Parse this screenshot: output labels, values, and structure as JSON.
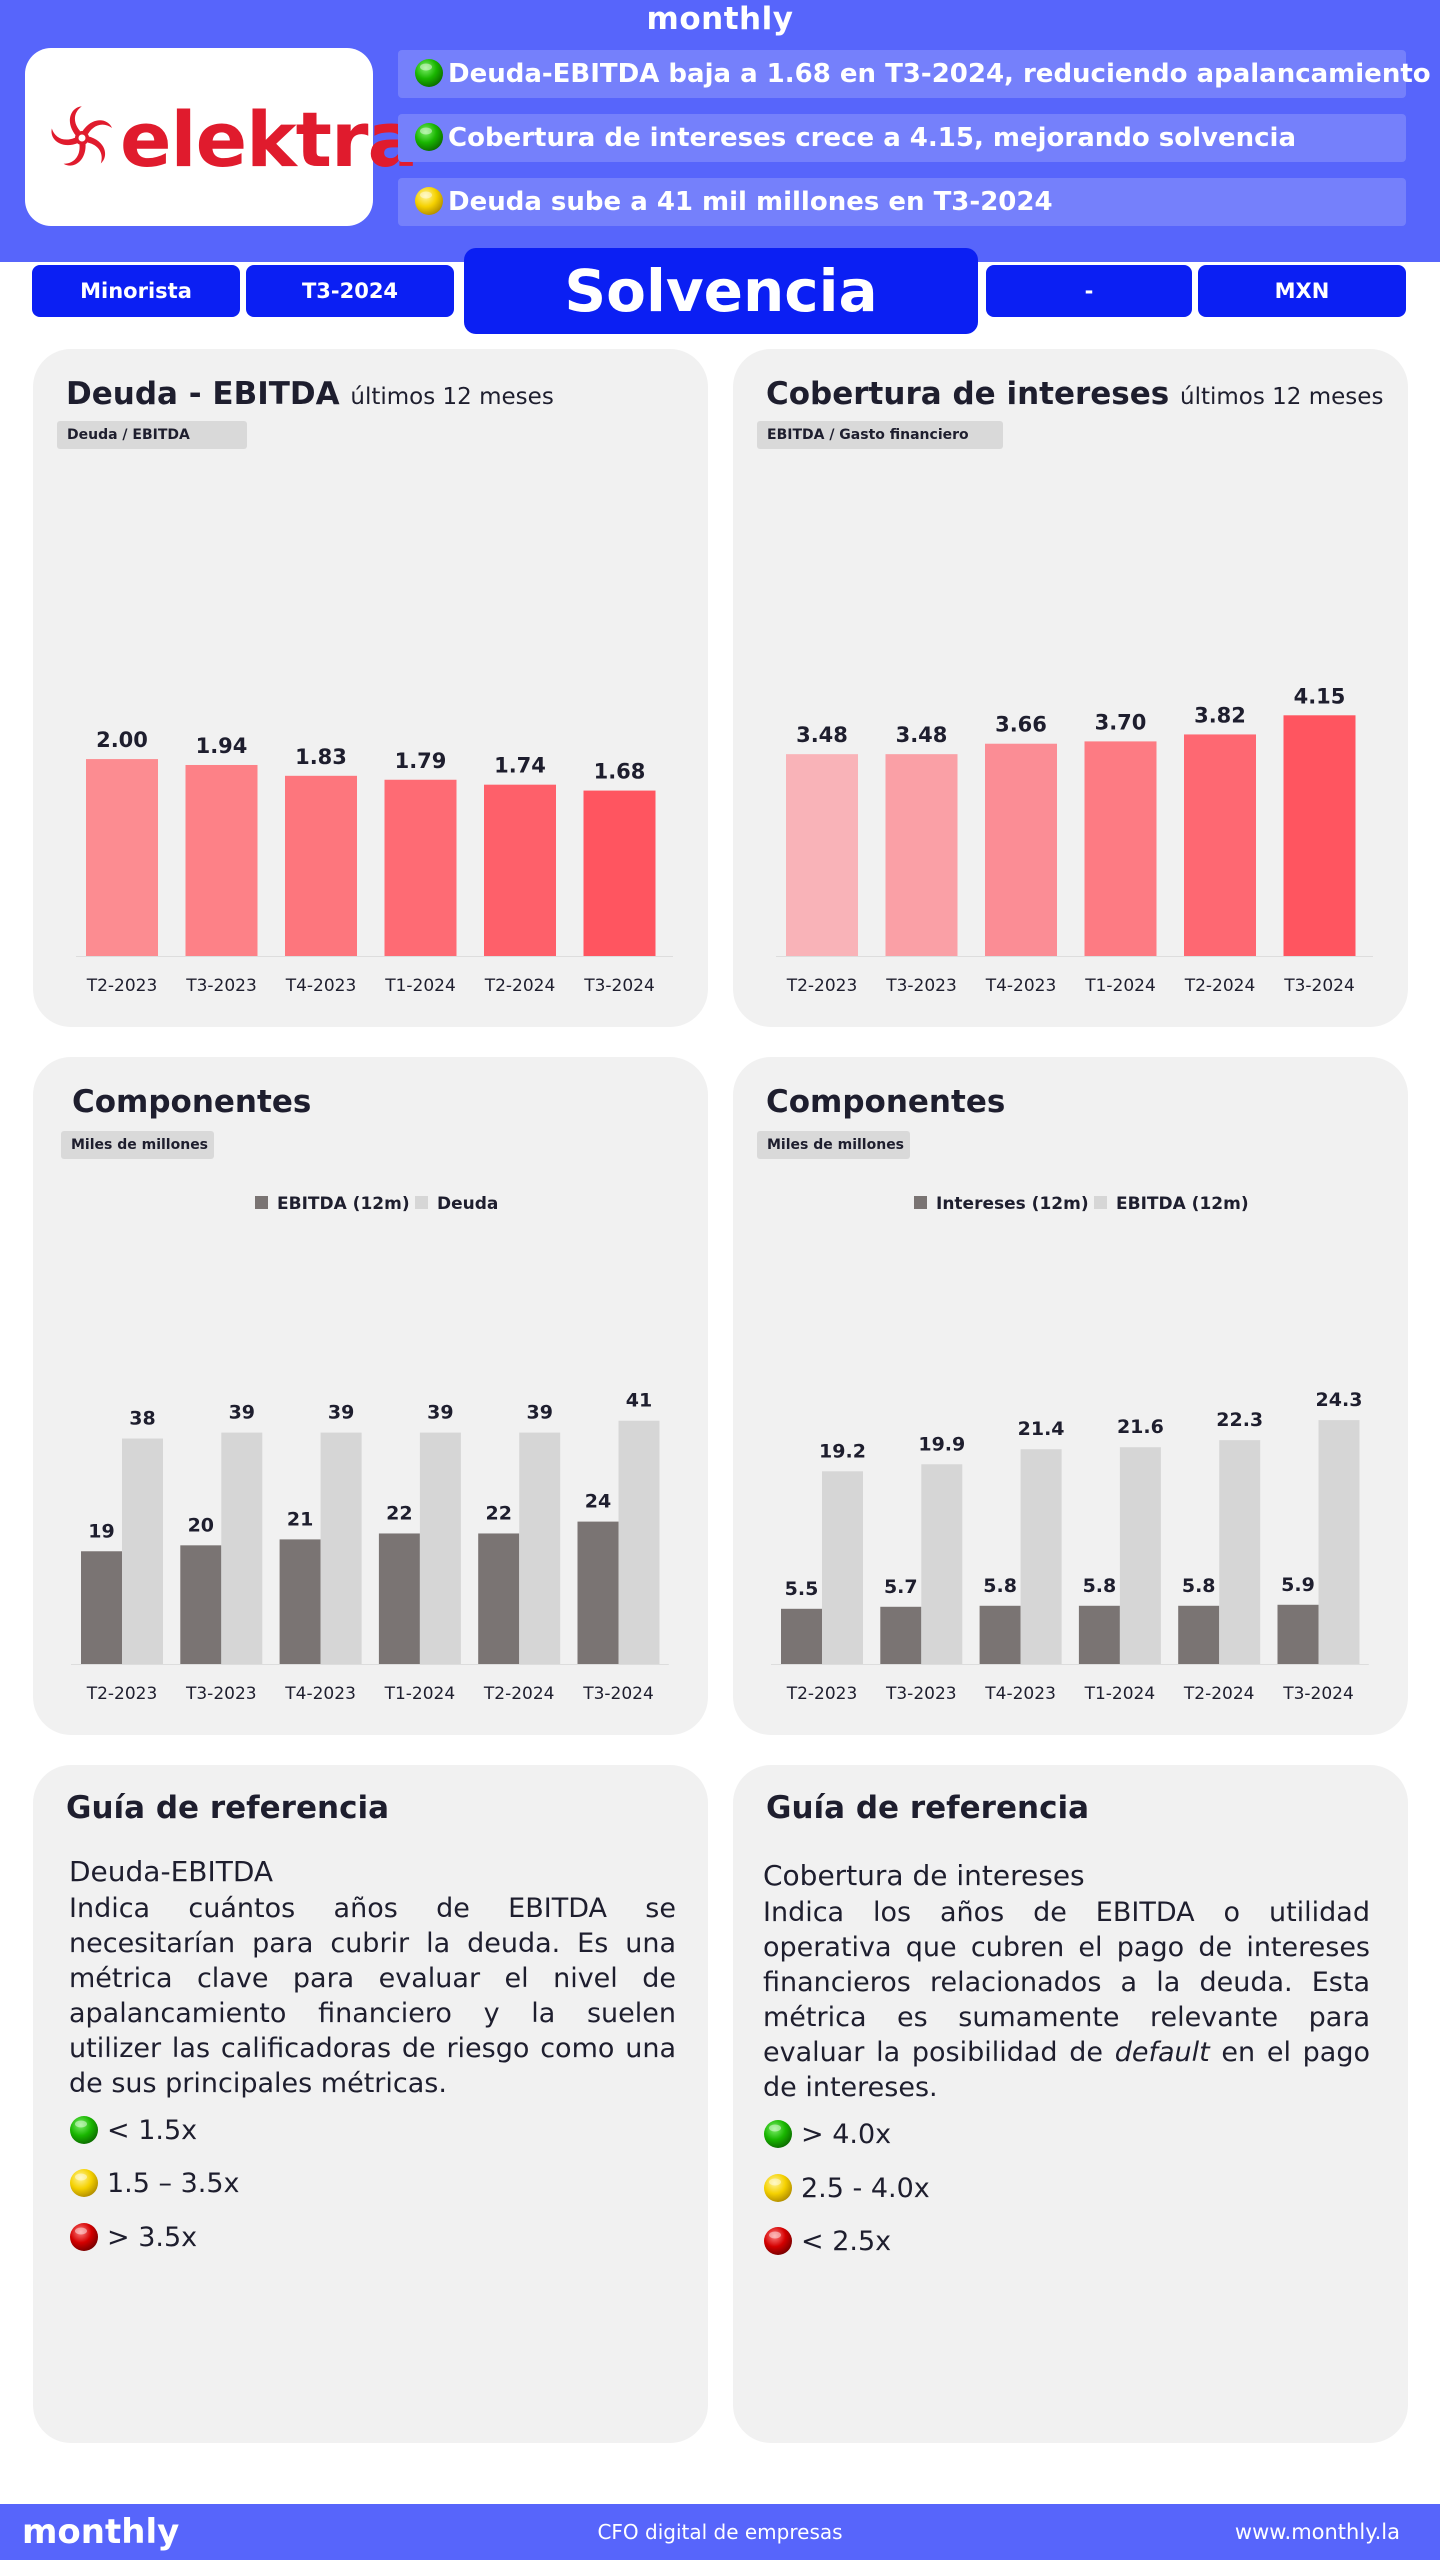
{
  "header": {
    "brand": "monthly",
    "company": "elektra",
    "headlines": [
      {
        "status": "green",
        "text": "Deuda-EBITDA baja a 1.68 en T3-2024, reduciendo apalancamiento"
      },
      {
        "status": "green",
        "text": "Cobertura de intereses crece a 4.15, mejorando solvencia"
      },
      {
        "status": "yellow",
        "text": "Deuda sube a 41 mil millones en T3-2024"
      }
    ],
    "pills": {
      "sector": "Minorista",
      "period": "T3-2024",
      "title": "Solvencia",
      "extra": "-",
      "currency": "MXN"
    }
  },
  "colors": {
    "brand_blue": "#5765fb",
    "pill_blue": "#0b1ff3",
    "logo_red": "#e01b2d",
    "green": "#19b600",
    "yellow": "#f5d100",
    "red": "#d40000"
  },
  "icons": {
    "status_dot": "status-dot-icon",
    "logo": "elektra-logo-icon"
  },
  "charts": {
    "debt_ebitda": {
      "title": "Deuda - EBITDA",
      "subtitle": "últimos 12 meses",
      "unit": "Deuda / EBITDA"
    },
    "interest_coverage": {
      "title": "Cobertura de intereses",
      "subtitle": "últimos 12 meses",
      "unit": "EBITDA  / Gasto financiero"
    },
    "components_left": {
      "title": "Componentes",
      "unit": "Miles de millones",
      "legend": [
        "EBITDA (12m)",
        "Deuda"
      ]
    },
    "components_right": {
      "title": "Componentes",
      "unit": "Miles de millones",
      "legend": [
        "Intereses (12m)",
        "EBITDA (12m)"
      ]
    }
  },
  "chart_data": [
    {
      "type": "bar",
      "title": "Deuda - EBITDA",
      "ylabel": "Deuda / EBITDA",
      "categories": [
        "T2-2023",
        "T3-2023",
        "T4-2023",
        "T1-2024",
        "T2-2024",
        "T3-2024"
      ],
      "values": [
        2.0,
        1.94,
        1.83,
        1.79,
        1.74,
        1.68
      ],
      "labels": [
        "2.00",
        "1.94",
        "1.83",
        "1.79",
        "1.74",
        "1.68"
      ],
      "ylim": [
        0,
        2.6
      ]
    },
    {
      "type": "bar",
      "title": "Cobertura de intereses",
      "ylabel": "EBITDA / Gasto financiero",
      "categories": [
        "T2-2023",
        "T3-2023",
        "T4-2023",
        "T1-2024",
        "T2-2024",
        "T3-2024"
      ],
      "values": [
        3.48,
        3.48,
        3.66,
        3.7,
        3.82,
        4.15
      ],
      "labels": [
        "3.48",
        "3.48",
        "3.66",
        "3.70",
        "3.82",
        "4.15"
      ],
      "ylim": [
        0,
        4.5
      ]
    },
    {
      "type": "bar",
      "title": "Componentes",
      "ylabel": "Miles de millones",
      "categories": [
        "T2-2023",
        "T3-2023",
        "T4-2023",
        "T1-2024",
        "T2-2024",
        "T3-2024"
      ],
      "series": [
        {
          "name": "EBITDA (12m)",
          "values": [
            19,
            20,
            21,
            22,
            22,
            24
          ],
          "labels": [
            "19",
            "20",
            "21",
            "22",
            "22",
            "24"
          ]
        },
        {
          "name": "Deuda",
          "values": [
            38,
            39,
            39,
            39,
            39,
            41
          ],
          "labels": [
            "38",
            "39",
            "39",
            "39",
            "39",
            "41"
          ]
        }
      ],
      "ylim": [
        0,
        45
      ]
    },
    {
      "type": "bar",
      "title": "Componentes",
      "ylabel": "Miles de millones",
      "categories": [
        "T2-2023",
        "T3-2023",
        "T4-2023",
        "T1-2024",
        "T2-2024",
        "T3-2024"
      ],
      "series": [
        {
          "name": "Intereses (12m)",
          "values": [
            5.5,
            5.7,
            5.8,
            5.8,
            5.8,
            5.9
          ],
          "labels": [
            "5.5",
            "5.7",
            "5.8",
            "5.8",
            "5.8",
            "5.9"
          ]
        },
        {
          "name": "EBITDA (12m)",
          "values": [
            19.2,
            19.9,
            21.4,
            21.6,
            22.3,
            24.3
          ],
          "labels": [
            "19.2",
            "19.9",
            "21.4",
            "21.6",
            "22.3",
            "24.3"
          ]
        }
      ],
      "ylim": [
        0,
        27
      ]
    }
  ],
  "guides": {
    "left": {
      "title": "Guía de referencia",
      "metric": "Deuda-EBITDA",
      "description": "Indica cuántos años de EBITDA se necesitarían para cubrir la deuda. Es una métrica clave para evaluar el nivel de apalancamiento financiero y la suelen utilizer las calificadoras de riesgo como una de sus principales métricas.",
      "ranges": [
        {
          "status": "green",
          "text": "< 1.5x"
        },
        {
          "status": "yellow",
          "text": "1.5 – 3.5x"
        },
        {
          "status": "red",
          "text": "> 3.5x"
        }
      ]
    },
    "right": {
      "title": "Guía de referencia",
      "metric": "Cobertura de intereses",
      "description_before": "Indica los años de EBITDA o utilidad operativa que cubren el pago de intereses financieros relacionados a la deuda. Esta métrica es sumamente relevante para evaluar la posibilidad de",
      "description_italic": "default",
      "description_after": "en el pago de intereses.",
      "ranges": [
        {
          "status": "green",
          "text": "> 4.0x"
        },
        {
          "status": "yellow",
          "text": "2.5 - 4.0x"
        },
        {
          "status": "red",
          "text": "< 2.5x"
        }
      ]
    }
  },
  "footer": {
    "brand": "monthly",
    "tagline": "CFO digital de empresas",
    "url": "www.monthly.la"
  }
}
